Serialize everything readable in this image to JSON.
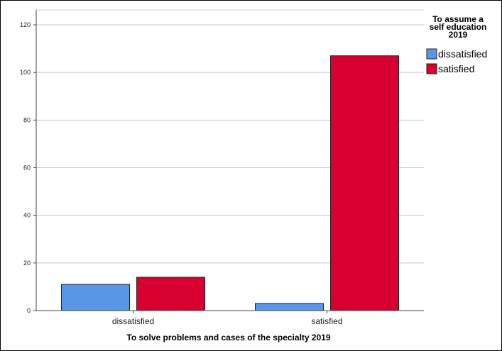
{
  "chart_data": {
    "type": "bar",
    "categories": [
      "dissatisfied",
      "satisfied"
    ],
    "series": [
      {
        "name": "dissatisfied",
        "values": [
          11,
          3
        ],
        "color": "#5a96e6"
      },
      {
        "name": "satisfied",
        "values": [
          14,
          107
        ],
        "color": "#d7002e"
      }
    ],
    "xlabel": "To solve problems and cases of the specialty 2019",
    "ylabel": "",
    "ylim": [
      0,
      120
    ],
    "yticks": [
      0,
      20,
      40,
      60,
      80,
      100,
      120
    ],
    "grid": true,
    "legend": {
      "title_lines": [
        "To assume a",
        "self education",
        "2019"
      ],
      "placement": "top-right"
    }
  }
}
